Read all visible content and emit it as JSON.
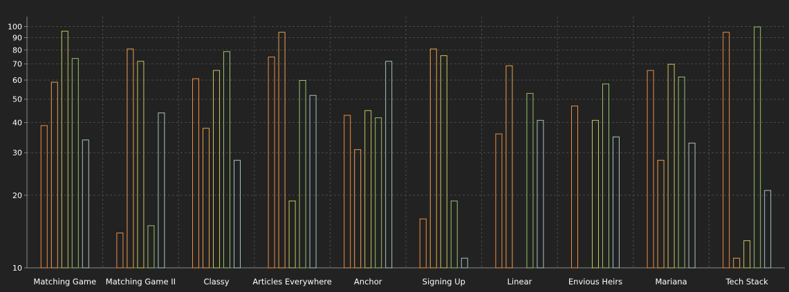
{
  "chart_data": {
    "type": "bar",
    "title": "",
    "xlabel": "",
    "ylabel": "",
    "yscale": "log",
    "ylim": [
      10,
      110
    ],
    "grid": true,
    "legend": "none",
    "y_ticks": [
      "10",
      "20",
      "30",
      "40",
      "50",
      "60",
      "70",
      "80",
      "90",
      "100"
    ],
    "categories": [
      "Matching Game",
      "Matching Game II",
      "Classy",
      "Articles Everywhere",
      "Anchor",
      "Signing Up",
      "Linear",
      "Envious Heirs",
      "Mariana",
      "Tech Stack"
    ],
    "series": [
      {
        "color": "#f28e3f",
        "values": [
          39,
          14,
          61,
          75,
          43,
          16,
          36,
          47,
          66,
          95
        ]
      },
      {
        "color": "#f0a14a",
        "values": [
          59,
          81,
          38,
          95,
          31,
          81,
          69,
          10,
          28,
          11
        ]
      },
      {
        "color": "#c9c85a",
        "values": [
          96,
          72,
          66,
          19,
          45,
          76,
          10,
          41,
          70,
          13
        ]
      },
      {
        "color": "#9bc46a",
        "values": [
          74,
          15,
          79,
          60,
          42,
          19,
          53,
          58,
          62,
          100
        ]
      },
      {
        "color": "#a9c4c4",
        "values": [
          34,
          44,
          28,
          52,
          72,
          11,
          41,
          35,
          33,
          21
        ]
      }
    ]
  },
  "colors": {
    "background": "#222222",
    "axis": "#888888",
    "grid": "#4a4a4a",
    "text": "#ffffff"
  }
}
